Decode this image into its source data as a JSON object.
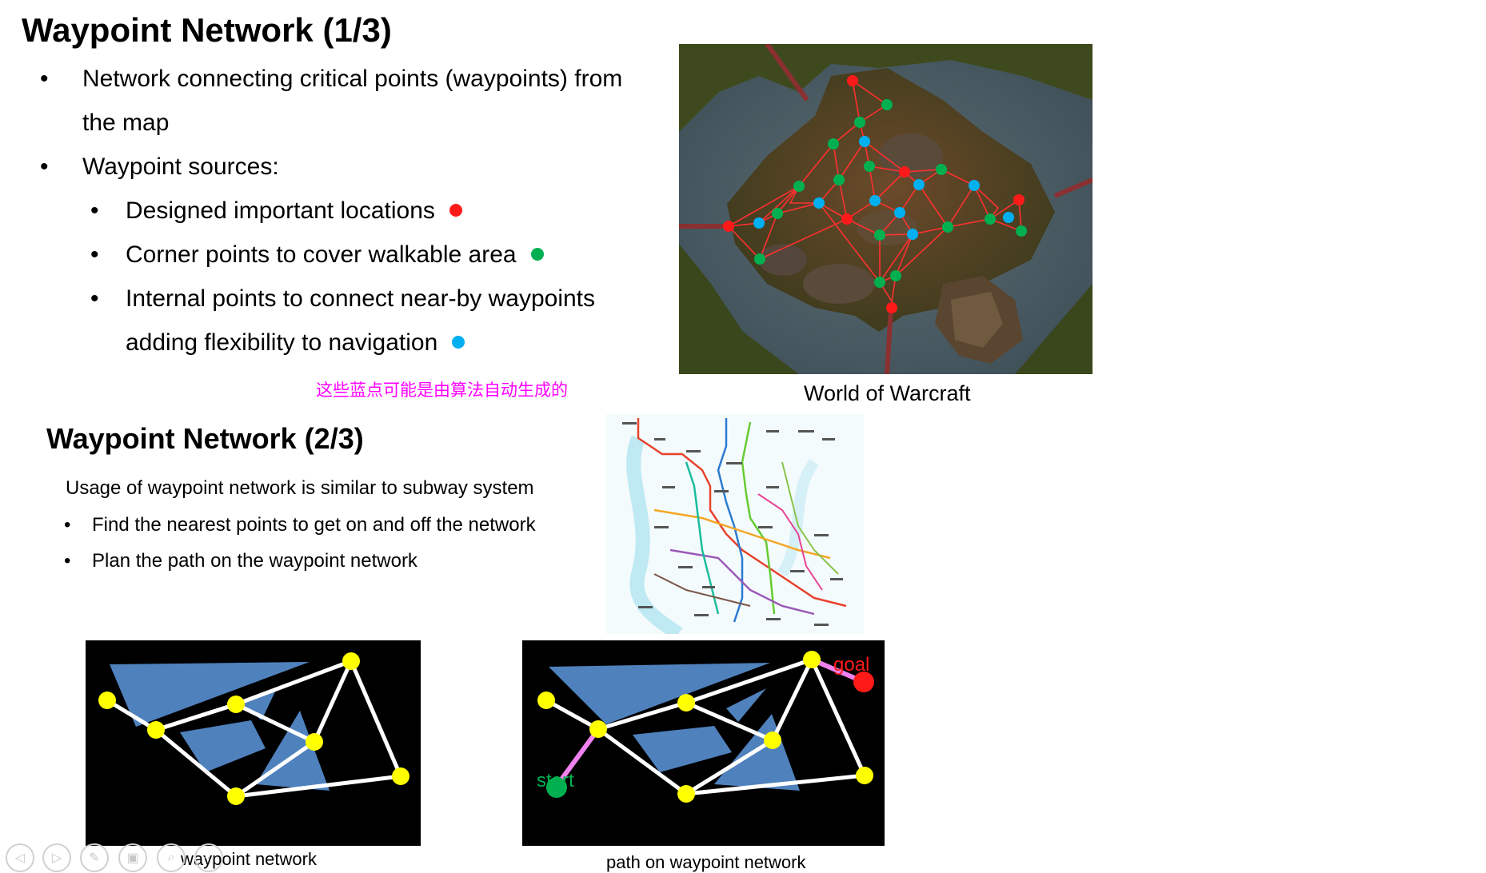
{
  "slide1": {
    "title": "Waypoint Network (1/3)",
    "bullets": [
      {
        "text_line1": "Network connecting critical points (waypoints) from",
        "text_line2": "the map"
      },
      {
        "text": "Waypoint sources:"
      }
    ],
    "sub_bullets": [
      {
        "text": "Designed important locations",
        "dot_color": "#ff1a1a"
      },
      {
        "text": "Corner points to cover walkable area",
        "dot_color": "#00b050"
      },
      {
        "text_line1": "Internal points to connect near-by waypoints",
        "text_line2": "adding flexibility to navigation",
        "dot_color": "#00b0f0"
      }
    ],
    "note": "这些蓝点可能是由算法自动生成的",
    "image_caption": "World of Warcraft"
  },
  "slide2": {
    "title": "Waypoint Network (2/3)",
    "intro": "Usage of waypoint network is similar to subway system",
    "bullets": [
      "Find the nearest points to get on and off the network",
      "Plan the path on the waypoint network"
    ],
    "diagram_left_caption": "waypoint network",
    "diagram_right_caption": "path on waypoint network",
    "start_label": "start",
    "goal_label": "goal"
  },
  "colors": {
    "important": "#ff1a1a",
    "corner": "#00b050",
    "internal": "#00b0f0",
    "note": "#ff00ff",
    "obstacle": "#4f81bd",
    "waypoint": "#ffff00",
    "path_link": "#ee82ee"
  },
  "controls": [
    "previous-icon",
    "next-icon",
    "pen-icon",
    "slides-icon",
    "zoom-icon",
    "more-icon"
  ]
}
